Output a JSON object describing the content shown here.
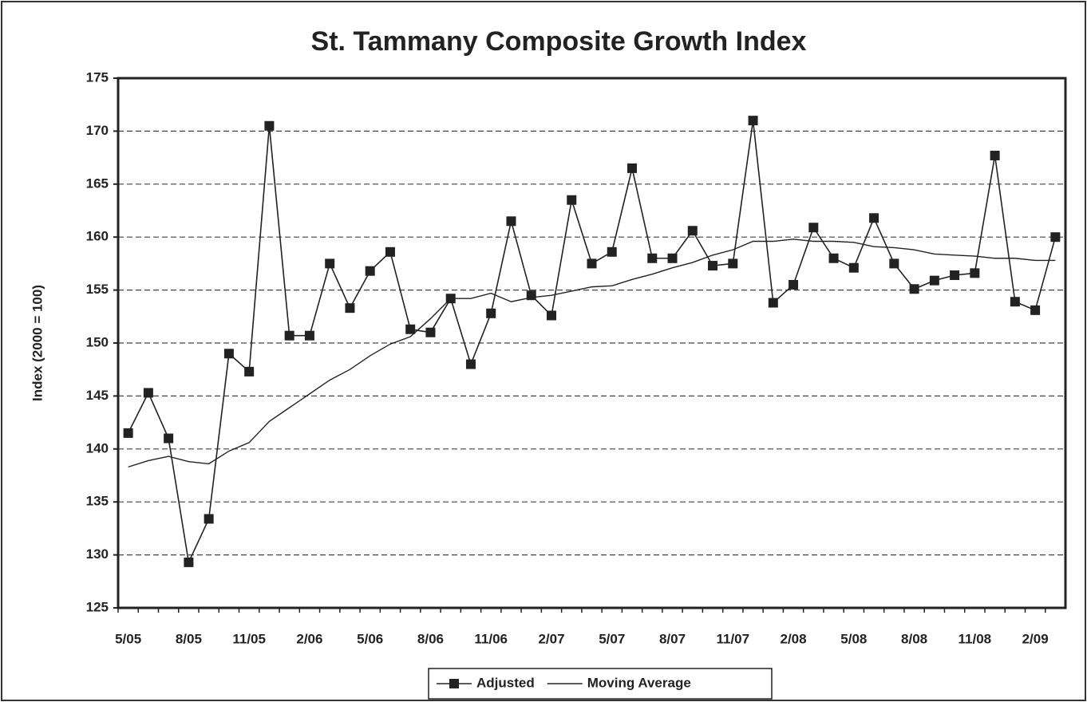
{
  "chart_data": {
    "type": "line",
    "title": "St. Tammany Composite Growth Index",
    "y_label": "Index (2000 = 100)",
    "categories": [
      "5/05",
      null,
      null,
      "8/05",
      null,
      null,
      "11/05",
      null,
      null,
      "2/06",
      null,
      null,
      "5/06",
      null,
      null,
      "8/06",
      null,
      null,
      "11/06",
      null,
      null,
      "2/07",
      null,
      null,
      "5/07",
      null,
      null,
      "8/07",
      null,
      null,
      "11/07",
      null,
      null,
      "2/08",
      null,
      null,
      "5/08",
      null,
      null,
      "8/08",
      null,
      null,
      "11/08",
      null,
      null,
      "2/09",
      null
    ],
    "series": [
      {
        "name": "Adjusted",
        "color": "#222222",
        "marker": "square",
        "values": [
          141.5,
          145.3,
          141,
          129.3,
          133.4,
          149,
          147.3,
          170.5,
          150.7,
          150.7,
          157.5,
          153.3,
          156.8,
          158.6,
          151.3,
          151,
          154.2,
          148,
          152.8,
          161.5,
          154.5,
          152.6,
          163.5,
          157.5,
          158.6,
          166.5,
          158,
          158,
          160.6,
          157.3,
          157.5,
          171,
          153.8,
          155.5,
          160.9,
          158,
          157.1,
          161.8,
          157.5,
          155.1,
          155.9,
          156.4,
          156.6,
          167.7,
          153.9,
          153.1,
          160
        ]
      },
      {
        "name": "Moving Average",
        "color": "#222222",
        "marker": "none",
        "values": [
          138.3,
          138.9,
          139.3,
          138.8,
          138.6,
          139.8,
          140.6,
          142.6,
          143.9,
          145.2,
          146.5,
          147.5,
          148.8,
          149.9,
          150.6,
          152.3,
          154.2,
          154.2,
          154.7,
          153.9,
          154.3,
          154.5,
          154.9,
          155.3,
          155.4,
          156,
          156.5,
          157.1,
          157.6,
          158.3,
          158.8,
          159.6,
          159.6,
          159.8,
          159.6,
          159.6,
          159.5,
          159.1,
          159,
          158.8,
          158.4,
          158.3,
          158.2,
          158,
          158,
          157.8,
          157.8
        ]
      }
    ],
    "ylim": [
      125,
      175
    ],
    "yticks": [
      125,
      130,
      135,
      140,
      145,
      150,
      155,
      160,
      165,
      170,
      175
    ],
    "grid": true,
    "legend": "bottom"
  }
}
